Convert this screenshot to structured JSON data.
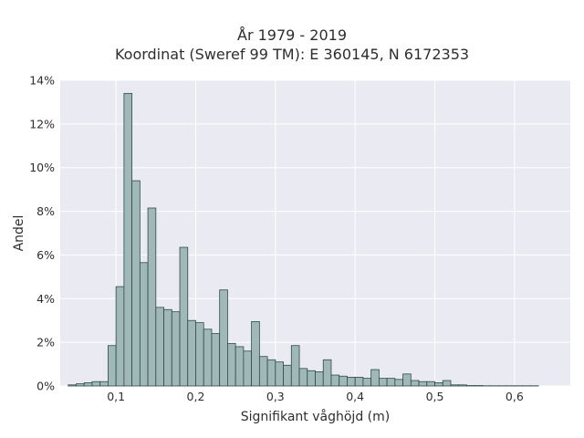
{
  "chart_data": {
    "type": "bar",
    "title": "År 1979 - 2019",
    "subtitle": "Koordinat (Sweref 99 TM): E 360145, N 6172353",
    "xlabel": "Signifikant våghöjd (m)",
    "ylabel": "Andel",
    "xlim": [
      0.03,
      0.67
    ],
    "ylim": [
      0,
      14
    ],
    "bin_width": 0.01,
    "x_ticks": [
      0.1,
      0.2,
      0.3,
      0.4,
      0.5,
      0.6
    ],
    "x_tick_labels": [
      "0,1",
      "0,2",
      "0,3",
      "0,4",
      "0,5",
      "0,6"
    ],
    "y_ticks": [
      0,
      2,
      4,
      6,
      8,
      10,
      12,
      14
    ],
    "y_tick_labels": [
      "0%",
      "2%",
      "4%",
      "6%",
      "8%",
      "10%",
      "12%",
      "14%"
    ],
    "grid": true,
    "colors": {
      "bar_fill": "#a0b8b8",
      "bar_edge": "#2f4a4a",
      "background": "#eaeaf2",
      "grid": "#ffffff"
    },
    "bins_start": [
      0.04,
      0.05,
      0.06,
      0.07,
      0.08,
      0.09,
      0.1,
      0.11,
      0.12,
      0.13,
      0.14,
      0.15,
      0.16,
      0.17,
      0.18,
      0.19,
      0.2,
      0.21,
      0.22,
      0.23,
      0.24,
      0.25,
      0.26,
      0.27,
      0.28,
      0.29,
      0.3,
      0.31,
      0.32,
      0.33,
      0.34,
      0.35,
      0.36,
      0.37,
      0.38,
      0.39,
      0.4,
      0.41,
      0.42,
      0.43,
      0.44,
      0.45,
      0.46,
      0.47,
      0.48,
      0.49,
      0.5,
      0.51,
      0.52,
      0.53,
      0.54,
      0.55,
      0.56,
      0.57,
      0.58,
      0.59,
      0.6,
      0.61,
      0.62
    ],
    "values": [
      0.05,
      0.1,
      0.15,
      0.2,
      0.2,
      1.85,
      4.55,
      13.4,
      9.4,
      5.65,
      8.15,
      3.6,
      3.5,
      3.4,
      6.35,
      3.0,
      2.9,
      2.6,
      2.4,
      4.4,
      1.95,
      1.8,
      1.6,
      2.95,
      1.35,
      1.2,
      1.1,
      0.95,
      1.85,
      0.8,
      0.7,
      0.65,
      1.2,
      0.5,
      0.45,
      0.4,
      0.4,
      0.35,
      0.75,
      0.35,
      0.35,
      0.3,
      0.55,
      0.25,
      0.2,
      0.2,
      0.15,
      0.25,
      0.05,
      0.05,
      0.02,
      0.02,
      0.01,
      0.01,
      0.01,
      0.01,
      0.01,
      0.01,
      0.01
    ]
  }
}
